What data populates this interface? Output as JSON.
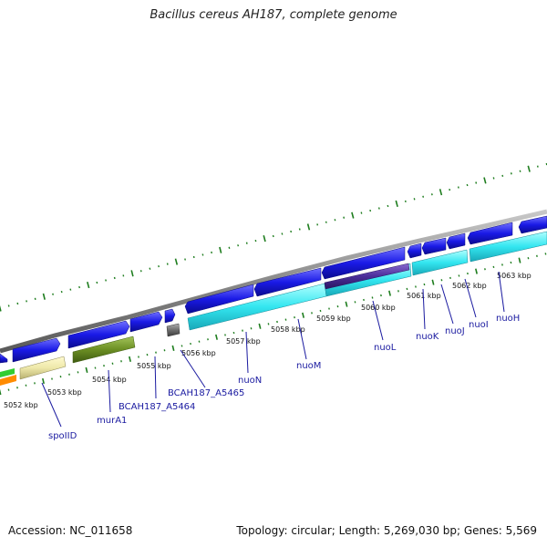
{
  "header": {
    "title": "Bacillus cereus AH187, complete genome"
  },
  "footer": {
    "accession": "Accession: NC_011658",
    "summary": "Topology: circular; Length: 5,269,030 bp; Genes: 5,569"
  },
  "colors": {
    "backbone": "#8a8a8a",
    "gene_forward": "#1a1ae6",
    "gene_reverse_operon": "#33e6f0",
    "gene_murA1": "#6b8e23",
    "gene_spoIID": "#eee8aa",
    "gene_small_grey": "#6e6e6e",
    "gene_purple": "#4b2e9a",
    "gene_orange": "#ff8c00",
    "gene_green": "#32cd32",
    "ticks": "#1e7d1e",
    "label_line": "#1a1aa0"
  },
  "ruler": {
    "kbp_labels": [
      "5052 kbp",
      "5053 kbp",
      "5054 kbp",
      "5055 kbp",
      "5056 kbp",
      "5057 kbp",
      "5058 kbp",
      "5059 kbp",
      "5060 kbp",
      "5061 kbp",
      "5062 kbp",
      "5063 kbp"
    ]
  },
  "genes": {
    "labels": [
      "spoIID",
      "murA1",
      "BCAH187_A5464",
      "BCAH187_A5465",
      "nuoN",
      "nuoM",
      "nuoL",
      "nuoK",
      "nuoJ",
      "nuoI",
      "nuoH"
    ]
  }
}
